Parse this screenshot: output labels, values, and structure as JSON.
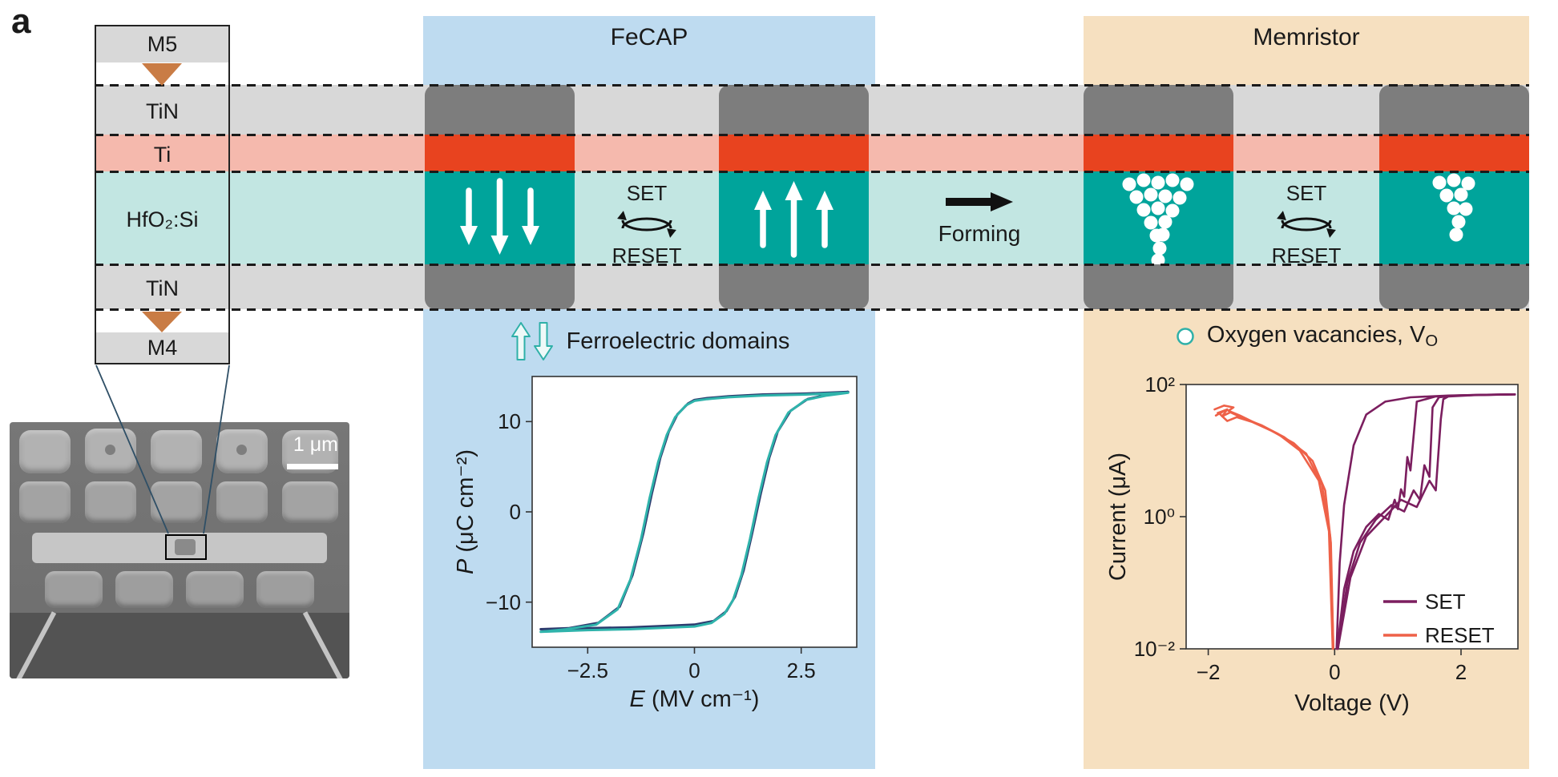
{
  "panel_label": "a",
  "colors": {
    "fecap_panel": "#bedbf0",
    "memristor_panel": "#f6e0c0",
    "tin_film": "#d8d8d8",
    "electrode": "#7d7d7d",
    "ti_film": "#f5b9ad",
    "ti_device": "#e8431f",
    "hfo2_film": "#c2e6e2",
    "hfo2_device": "#00a49b",
    "via": "#c97c45",
    "set_trace": "#7b1e5f",
    "reset_trace": "#ee6148",
    "loop_teal": "#2fb3ab",
    "loop_navy": "#2c3a6e",
    "vacancy_outline": "#2fb0a8"
  },
  "stack": {
    "labels": [
      "M5",
      "TiN",
      "Ti",
      "HfO₂:Si",
      "TiN",
      "M4"
    ]
  },
  "sem": {
    "scale_label": "1 μm"
  },
  "fecap": {
    "title": "FeCAP",
    "set_label": "SET",
    "reset_label": "RESET",
    "legend_label": "Ferroelectric domains"
  },
  "forming": {
    "label": "Forming"
  },
  "memristor": {
    "title": "Memristor",
    "set_label": "SET",
    "reset_label": "RESET",
    "legend_label": "Oxygen vacancies, V",
    "legend_sub": "O"
  },
  "chart_data": [
    {
      "type": "line",
      "title": "Ferroelectric polarization hysteresis",
      "xlabel": "E (MV cm⁻¹)",
      "ylabel": "P (μC cm⁻²)",
      "xlabel_var": "E",
      "xlabel_units": " (MV cm⁻¹)",
      "ylabel_var": "P",
      "ylabel_units": " (μC cm⁻²)",
      "xlim": [
        -3.8,
        3.8
      ],
      "ylim": [
        -15,
        15
      ],
      "xticks": [
        -2.5,
        0,
        2.5
      ],
      "yticks": [
        10,
        0,
        -10
      ],
      "xtick_labels": [
        "−2.5",
        "0",
        "2.5"
      ],
      "ytick_labels": [
        "10",
        "0",
        "−10"
      ],
      "grid": false,
      "series": [
        {
          "name": "P–E loop cycle 1",
          "color": "#2c3a6e",
          "width": 3,
          "x": [
            -3.6,
            -2.5,
            -1.5,
            -0.5,
            0,
            0.45,
            0.75,
            0.95,
            1.15,
            1.35,
            1.55,
            1.75,
            1.95,
            2.25,
            2.65,
            3.15,
            3.6,
            3.6,
            2.6,
            1.6,
            0.8,
            0.3,
            0,
            -0.15,
            -0.4,
            -0.6,
            -0.8,
            -1.0,
            -1.2,
            -1.45,
            -1.75,
            -2.25,
            -2.95,
            -3.6,
            -3.6
          ],
          "y": [
            -13.0,
            -12.9,
            -12.8,
            -12.6,
            -12.5,
            -12.1,
            -11.0,
            -9.4,
            -6.5,
            -2.4,
            2.0,
            6.0,
            8.9,
            11.2,
            12.5,
            13.0,
            13.3,
            13.3,
            13.1,
            13.0,
            12.8,
            12.6,
            12.4,
            12.0,
            10.8,
            8.9,
            6.0,
            2.0,
            -2.4,
            -7.0,
            -10.5,
            -12.3,
            -12.9,
            -13.0,
            -13.0
          ]
        },
        {
          "name": "P–E loop cycle 2",
          "color": "#2fb3ab",
          "width": 3,
          "x": [
            -3.6,
            -2.5,
            -1.5,
            -0.5,
            0,
            0.4,
            0.7,
            0.9,
            1.1,
            1.3,
            1.5,
            1.7,
            1.9,
            2.2,
            2.6,
            3.1,
            3.6,
            3.6,
            2.6,
            1.6,
            0.8,
            0.3,
            0,
            -0.2,
            -0.45,
            -0.65,
            -0.85,
            -1.05,
            -1.25,
            -1.5,
            -1.8,
            -2.3,
            -3.0,
            -3.6,
            -3.6
          ],
          "y": [
            -13.3,
            -13.1,
            -13.0,
            -12.8,
            -12.7,
            -12.3,
            -11.3,
            -9.8,
            -7.0,
            -3.0,
            1.5,
            5.5,
            8.5,
            11.0,
            12.4,
            12.9,
            13.2,
            13.2,
            13.0,
            12.9,
            12.7,
            12.5,
            12.3,
            11.8,
            10.5,
            8.5,
            5.5,
            1.5,
            -3.0,
            -7.5,
            -10.8,
            -12.5,
            -13.0,
            -13.3,
            -13.3
          ]
        }
      ]
    },
    {
      "type": "line",
      "title": "Memristor switching I–V",
      "xlabel": "Voltage (V)",
      "ylabel": "Current (μA)",
      "xlim": [
        -2.35,
        2.9
      ],
      "ylim": [
        0.01,
        100
      ],
      "yscale": "log",
      "xticks": [
        -2,
        0,
        2
      ],
      "xtick_labels": [
        "−2",
        "0",
        "2"
      ],
      "ytick_labels": [
        "10²",
        "10⁰",
        "10⁻²"
      ],
      "legend": [
        {
          "label": "SET",
          "color": "#7b1e5f"
        },
        {
          "label": "RESET",
          "color": "#ee6148"
        }
      ],
      "series": [
        {
          "name": "RESET cycle 1",
          "color": "#ee6148",
          "width": 2.6,
          "x": [
            -0.02,
            -0.06,
            -0.15,
            -0.35,
            -0.65,
            -1.0,
            -1.3,
            -1.55,
            -1.7,
            -1.82,
            -1.75,
            -1.88
          ],
          "y": [
            0.01,
            0.4,
            2.5,
            7,
            13,
            20,
            27,
            32,
            28,
            36,
            40,
            34
          ]
        },
        {
          "name": "RESET cycle 2",
          "color": "#ee6148",
          "width": 2.6,
          "x": [
            -0.02,
            -0.07,
            -0.2,
            -0.45,
            -0.8,
            -1.15,
            -1.45,
            -1.65,
            -1.78,
            -1.7,
            -1.85
          ],
          "y": [
            0.01,
            0.5,
            3,
            9,
            16,
            24,
            31,
            38,
            33,
            42,
            37
          ]
        },
        {
          "name": "RESET cycle 3",
          "color": "#ee6148",
          "width": 2.6,
          "x": [
            -0.03,
            -0.09,
            -0.25,
            -0.55,
            -0.9,
            -1.25,
            -1.5,
            -1.68,
            -1.6,
            -1.75,
            -1.9
          ],
          "y": [
            0.01,
            0.6,
            3.5,
            10,
            18,
            26,
            34,
            40,
            45,
            48,
            42
          ]
        },
        {
          "name": "SET cycle 1 (on-state)",
          "color": "#7b1e5f",
          "width": 2.6,
          "x": [
            0.03,
            0.08,
            0.15,
            0.3,
            0.5,
            0.8,
            1.2,
            1.8,
            2.4,
            2.85
          ],
          "y": [
            0.01,
            0.2,
            1.5,
            12,
            35,
            55,
            64,
            68,
            70,
            71
          ]
        },
        {
          "name": "SET cycle 2",
          "color": "#7b1e5f",
          "width": 2.6,
          "x": [
            0.04,
            0.15,
            0.3,
            0.5,
            0.7,
            0.85,
            0.95,
            1.0,
            1.05,
            1.1,
            1.15,
            1.2,
            1.3,
            1.6,
            2.1,
            2.85
          ],
          "y": [
            0.01,
            0.08,
            0.3,
            0.7,
            1.1,
            0.9,
            1.8,
            1.3,
            2.6,
            2.0,
            8,
            5,
            55,
            66,
            69,
            71
          ]
        },
        {
          "name": "SET cycle 3",
          "color": "#7b1e5f",
          "width": 2.6,
          "x": [
            0.05,
            0.2,
            0.4,
            0.65,
            0.9,
            1.1,
            1.25,
            1.35,
            1.42,
            1.5,
            1.55,
            1.65,
            1.9,
            2.4,
            2.85
          ],
          "y": [
            0.01,
            0.1,
            0.4,
            0.9,
            1.5,
            1.2,
            2.5,
            1.8,
            6,
            4,
            45,
            64,
            68,
            70,
            71
          ]
        },
        {
          "name": "SET cycle 4",
          "color": "#7b1e5f",
          "width": 2.6,
          "x": [
            0.05,
            0.25,
            0.5,
            0.8,
            1.05,
            1.3,
            1.5,
            1.6,
            1.68,
            1.72,
            1.8,
            2.2,
            2.85
          ],
          "y": [
            0.01,
            0.12,
            0.5,
            1.0,
            1.8,
            1.4,
            3.5,
            2.5,
            30,
            60,
            66,
            69,
            71
          ]
        }
      ]
    }
  ]
}
